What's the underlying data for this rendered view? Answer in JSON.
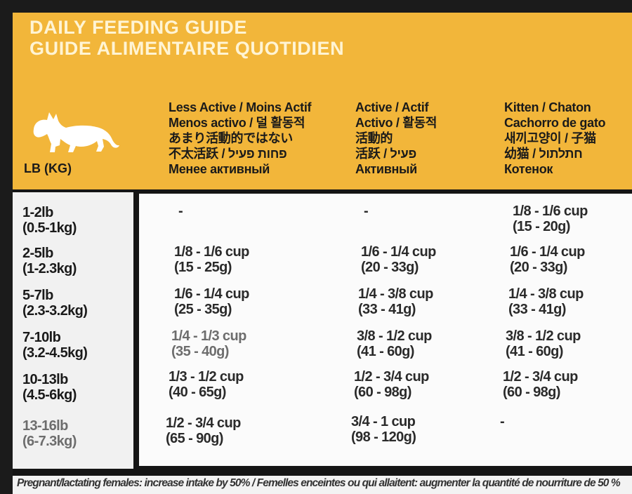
{
  "title": {
    "english": "DAILY FEEDING GUIDE",
    "french": "GUIDE ALIMENTAIRE QUOTIDIEN"
  },
  "icon": "cat-silhouette-icon",
  "weight_header": "LB (KG)",
  "columns": [
    {
      "lines": [
        "Less Active / Moins Actif",
        "Menos activo / 덜 활동적",
        "あまり活動的ではない",
        "不太活跃 / פחות פעיל",
        "Менее активный"
      ]
    },
    {
      "lines": [
        "Active / Actif",
        "Activo / 활동적",
        "活動的",
        "活跃 / פעיל",
        "Активный"
      ]
    },
    {
      "lines": [
        "Kitten / Chaton",
        "Cachorro de gato",
        "새끼고양이 / 子猫",
        "幼猫 / חתלתול",
        "Котенок"
      ]
    }
  ],
  "rows": [
    {
      "lb": "1-2lb",
      "kg": "(0.5-1kg)",
      "less_active": "-",
      "active": "-",
      "kitten_cup": "1/8 - 1/6 cup",
      "kitten_g": "(15 - 20g)"
    },
    {
      "lb": "2-5lb",
      "kg": "(1-2.3kg)",
      "less_active_cup": "1/8 - 1/6 cup",
      "less_active_g": "(15 - 25g)",
      "active_cup": "1/6 - 1/4 cup",
      "active_g": "(20 - 33g)",
      "kitten_cup": "1/6 - 1/4 cup",
      "kitten_g": "(20 - 33g)"
    },
    {
      "lb": "5-7lb",
      "kg": "(2.3-3.2kg)",
      "less_active_cup": "1/6 - 1/4 cup",
      "less_active_g": "(25 - 35g)",
      "active_cup": "1/4 - 3/8 cup",
      "active_g": "(33 - 41g)",
      "kitten_cup": "1/4 - 3/8 cup",
      "kitten_g": "(33 - 41g)"
    },
    {
      "lb": "7-10lb",
      "kg": "(3.2-4.5kg)",
      "less_active_cup": "1/4 - 1/3 cup",
      "less_active_g": "(35 - 40g)",
      "active_cup": "3/8 - 1/2 cup",
      "active_g": "(41 - 60g)",
      "kitten_cup": "3/8 - 1/2 cup",
      "kitten_g": "(41 - 60g)"
    },
    {
      "lb": "10-13lb",
      "kg": "(4.5-6kg)",
      "less_active_cup": "1/3 - 1/2 cup",
      "less_active_g": "(40 - 65g)",
      "active_cup": "1/2 - 3/4 cup",
      "active_g": "(60 - 98g)",
      "kitten_cup": "1/2 - 3/4 cup",
      "kitten_g": "(60 - 98g)"
    },
    {
      "lb": "13-16lb",
      "kg": "(6-7.3kg)",
      "less_active_cup": "1/2 - 3/4 cup",
      "less_active_g": "(65 - 90g)",
      "active_cup": "3/4 - 1 cup",
      "active_g": "(98 - 120g)",
      "kitten": "-"
    }
  ],
  "footer": "Pregnant/lactating females: increase intake by 50% / Femelles enceintes ou qui allaitent: augmenter la quantité de nourriture de 50 %"
}
